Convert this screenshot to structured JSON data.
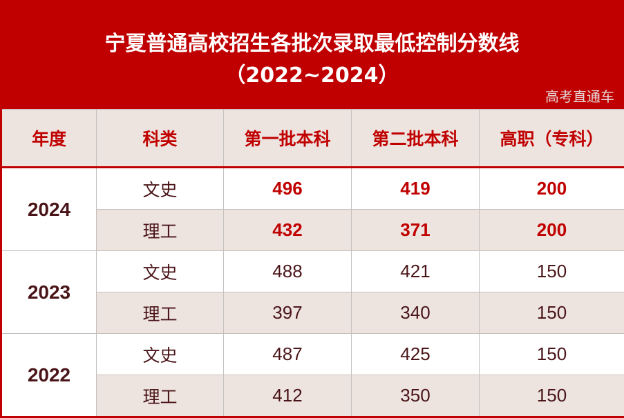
{
  "title": {
    "line1": "宁夏普通高校招生各批次录取最低控制分数线",
    "line2": "（2022~2024）"
  },
  "colors": {
    "banner": "#c00000",
    "header_bg": "#ede4e0",
    "text": "#4a1518",
    "highlight": "#c00000"
  },
  "table": {
    "headers": [
      "年度",
      "科类",
      "第一批本科",
      "第二批本科",
      "高职（专科）"
    ],
    "years": [
      {
        "year": "2024",
        "rows": [
          {
            "category": "文史",
            "first": "496",
            "second": "419",
            "vocational": "200"
          },
          {
            "category": "理工",
            "first": "432",
            "second": "371",
            "vocational": "200"
          }
        ]
      },
      {
        "year": "2023",
        "rows": [
          {
            "category": "文史",
            "first": "488",
            "second": "421",
            "vocational": "150"
          },
          {
            "category": "理工",
            "first": "397",
            "second": "340",
            "vocational": "150"
          }
        ]
      },
      {
        "year": "2022",
        "rows": [
          {
            "category": "文史",
            "first": "487",
            "second": "425",
            "vocational": "150"
          },
          {
            "category": "理工",
            "first": "412",
            "second": "350",
            "vocational": "150"
          }
        ]
      }
    ]
  },
  "watermark": "高考直通车"
}
